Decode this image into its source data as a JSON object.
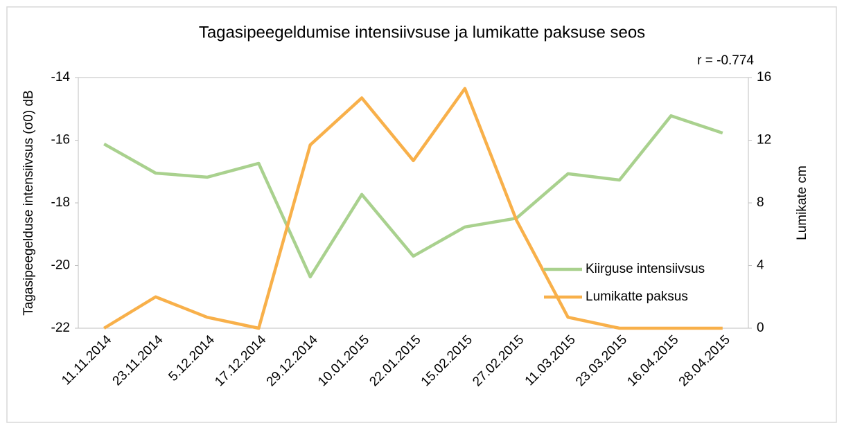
{
  "chart_data": {
    "type": "line",
    "title": "Tagasipeegeldumise intensiivsuse ja lumikatte paksuse seos",
    "annotation": "r = -0.774",
    "ylabel": "Tagasipeegelduse intensiivsus (σ0) dB",
    "y2label": "Lumikate  cm",
    "categories": [
      "11.11.2014",
      "23.11.2014",
      "5.12.2014",
      "17.12.2014",
      "29.12.2014",
      "10.01.2015",
      "22.01.2015",
      "15.02.2015",
      "27.02.2015",
      "11.03.2015",
      "23.03.2015",
      "16.04.2015",
      "28.04.2015"
    ],
    "series": [
      {
        "name": "Kiirguse intensiivsus",
        "color": "#a9d18e",
        "values": [
          -16.12,
          -17.05,
          -17.18,
          -16.74,
          -20.36,
          -17.73,
          -19.7,
          -18.77,
          -18.49,
          -17.07,
          -17.27,
          -15.22,
          -15.77
        ]
      },
      {
        "name": "Lumikatte paksus",
        "color": "#f8b04a",
        "axis": "y2",
        "values": [
          0,
          2.0,
          0.7,
          0,
          11.7,
          14.7,
          10.7,
          15.3,
          6.9,
          0.7,
          0,
          0,
          0
        ]
      }
    ],
    "ylim": [
      -22,
      -14
    ],
    "yticks": [
      -22,
      -20,
      -18,
      -16,
      -14
    ],
    "y2lim": [
      0,
      16
    ],
    "y2ticks": [
      0,
      4,
      8,
      12,
      16
    ],
    "legend": "lower right",
    "grid": false
  }
}
